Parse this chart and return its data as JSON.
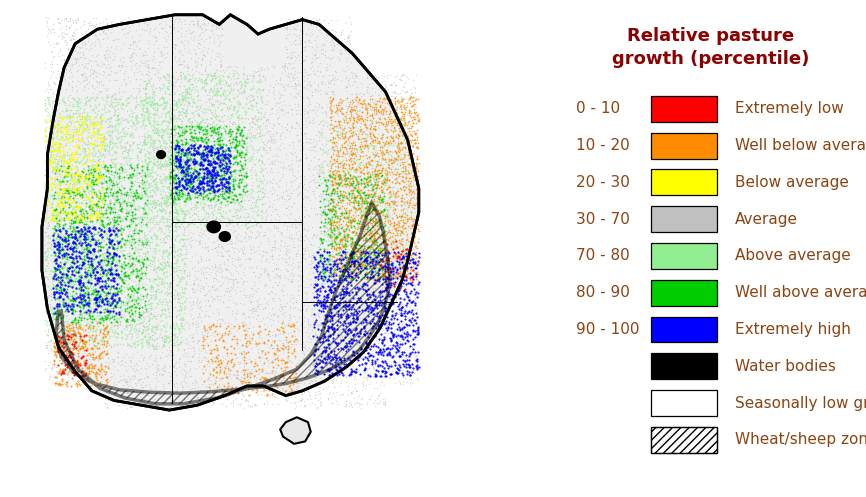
{
  "legend_title": "Relative pasture\ngrowth (percentile)",
  "legend_items": [
    {
      "range": "0 - 10",
      "color": "#FF0000",
      "label": "Extremely low",
      "hatch": ""
    },
    {
      "range": "10 - 20",
      "color": "#FF8C00",
      "label": "Well below average",
      "hatch": ""
    },
    {
      "range": "20 - 30",
      "color": "#FFFF00",
      "label": "Below average",
      "hatch": ""
    },
    {
      "range": "30 - 70",
      "color": "#C0C0C0",
      "label": "Average",
      "hatch": ""
    },
    {
      "range": "70 - 80",
      "color": "#90EE90",
      "label": "Above average",
      "hatch": ""
    },
    {
      "range": "80 - 90",
      "color": "#00CC00",
      "label": "Well above average",
      "hatch": ""
    },
    {
      "range": "90 - 100",
      "color": "#0000FF",
      "label": "Extremely high",
      "hatch": ""
    },
    {
      "range": "",
      "color": "#000000",
      "label": "Water bodies",
      "hatch": ""
    },
    {
      "range": "",
      "color": "#FFFFFF",
      "label": "Seasonally low growth",
      "hatch": ""
    },
    {
      "range": "",
      "color": "#FFFFFF",
      "label": "Wheat/sheep zone",
      "hatch": "////"
    }
  ],
  "title_color": "#8B0000",
  "legend_text_color": "#8B4513",
  "range_text_color": "#8B4513",
  "title_fontsize": 13,
  "legend_fontsize": 11,
  "range_fontsize": 11,
  "fig_width": 8.66,
  "fig_height": 4.97,
  "dpi": 100,
  "seed": 42
}
